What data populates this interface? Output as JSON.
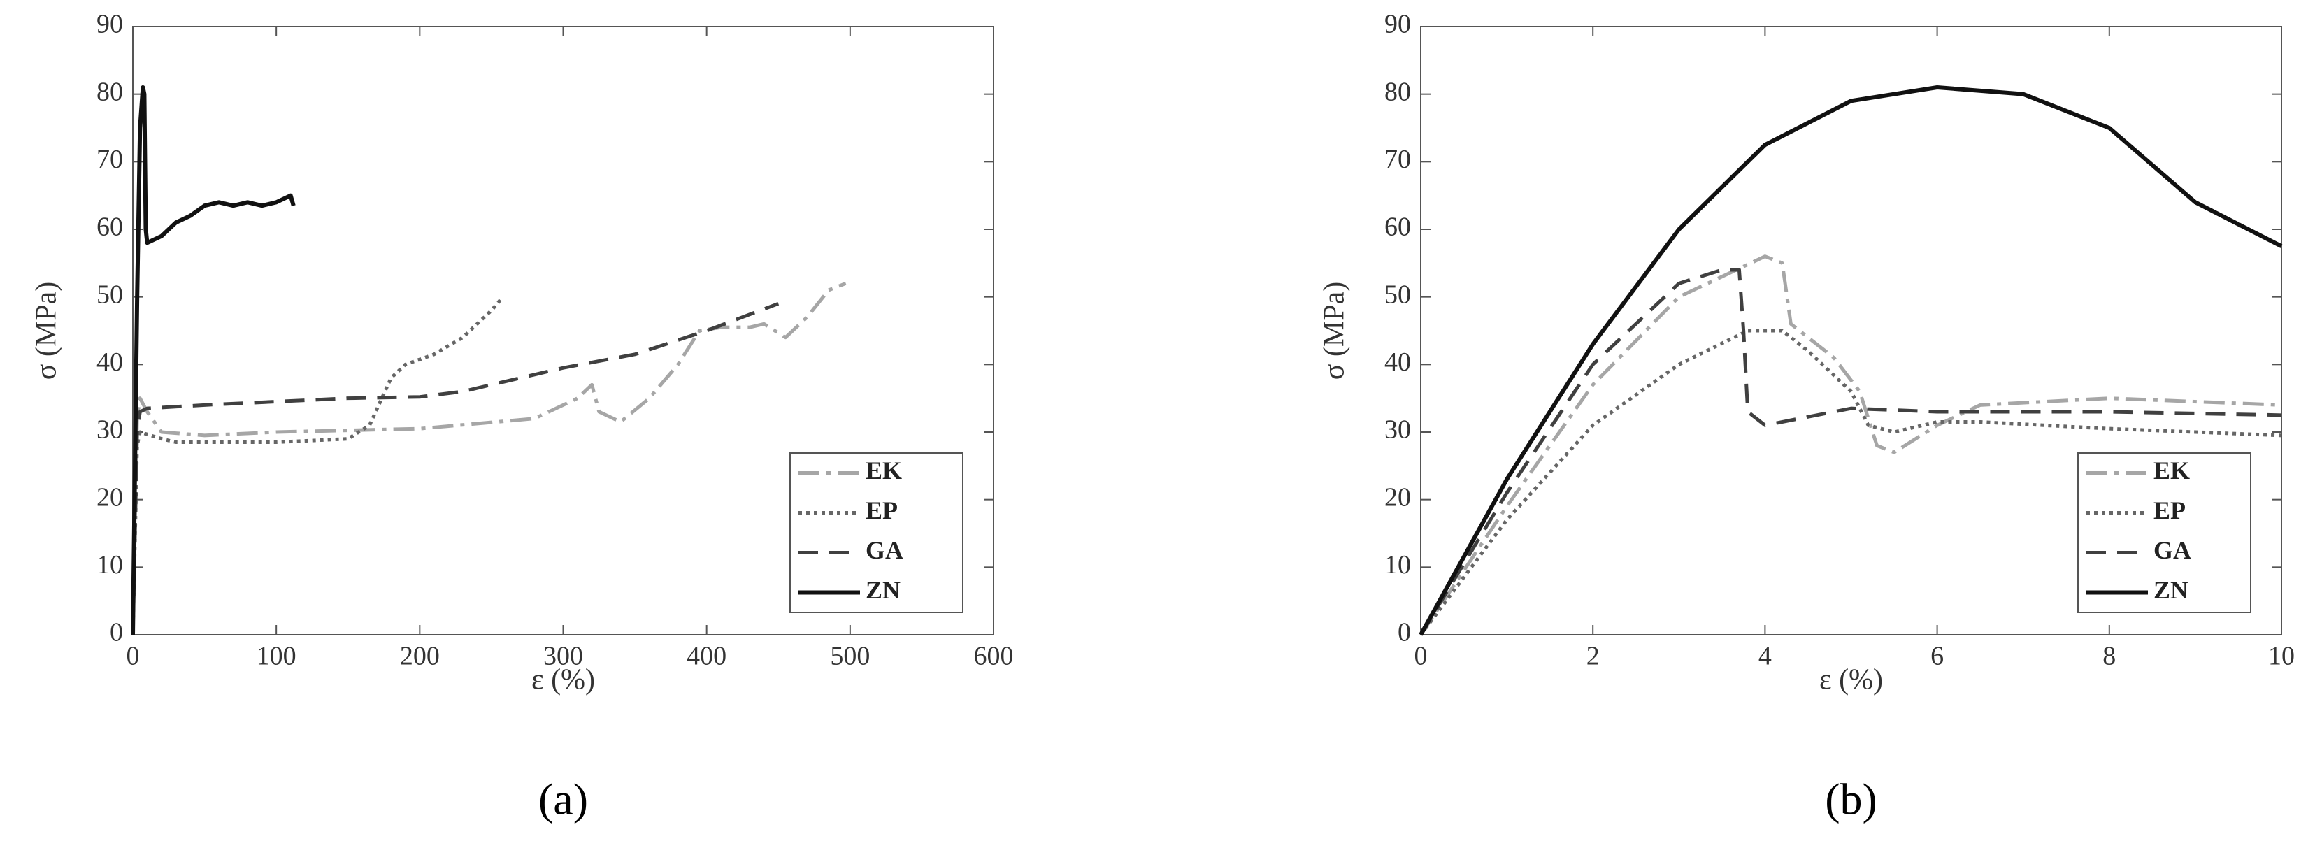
{
  "chart_data": [
    {
      "type": "line",
      "caption": "(a)",
      "xlabel": "ε (%)",
      "ylabel": "σ (MPa)",
      "xlim": [
        0,
        600
      ],
      "xticks": [
        0,
        100,
        200,
        300,
        400,
        500,
        600
      ],
      "ylim": [
        0,
        90
      ],
      "yticks": [
        0,
        10,
        20,
        30,
        40,
        50,
        60,
        70,
        80,
        90
      ],
      "legend": "lower right",
      "series": [
        {
          "name": "EK",
          "color": "#a6a6a6",
          "dash": "dashdot",
          "x": [
            0,
            3,
            5,
            10,
            20,
            50,
            100,
            200,
            280,
            310,
            320,
            325,
            340,
            360,
            380,
            395,
            410,
            430,
            440,
            455,
            470,
            485,
            497
          ],
          "values": [
            0,
            32,
            35,
            33,
            30,
            29.5,
            30,
            30.5,
            32,
            35,
            37,
            33,
            31.5,
            35,
            40,
            45,
            45.5,
            45.5,
            46,
            44,
            47,
            51,
            52
          ]
        },
        {
          "name": "EP",
          "color": "#666666",
          "dash": "dotted",
          "x": [
            0,
            3,
            5,
            20,
            30,
            50,
            100,
            150,
            165,
            180,
            190,
            210,
            230,
            250,
            258
          ],
          "values": [
            0,
            28,
            30,
            29,
            28.5,
            28.5,
            28.5,
            29,
            31,
            38,
            40,
            41.5,
            44,
            48,
            50
          ]
        },
        {
          "name": "GA",
          "color": "#404040",
          "dash": "dashed",
          "x": [
            0,
            3,
            5,
            10,
            50,
            100,
            150,
            200,
            230,
            270,
            300,
            350,
            400,
            450
          ],
          "values": [
            0,
            30,
            33,
            33.5,
            34,
            34.5,
            35,
            35.2,
            36,
            38,
            39.5,
            41.5,
            45,
            49
          ]
        },
        {
          "name": "ZN",
          "color": "#111111",
          "dash": "solid",
          "x": [
            0,
            3,
            5,
            7,
            8,
            9,
            10,
            20,
            30,
            40,
            50,
            60,
            70,
            80,
            90,
            100,
            110,
            112
          ],
          "values": [
            0,
            50,
            75,
            81,
            80,
            60,
            58,
            59,
            61,
            62,
            63.5,
            64,
            63.5,
            64,
            63.5,
            64,
            65,
            63.5
          ]
        }
      ]
    },
    {
      "type": "line",
      "caption": "(b)",
      "xlabel": "ε (%)",
      "ylabel": "σ (MPa)",
      "xlim": [
        0,
        10
      ],
      "xticks": [
        0,
        2,
        4,
        6,
        8,
        10
      ],
      "ylim": [
        0,
        90
      ],
      "yticks": [
        0,
        10,
        20,
        30,
        40,
        50,
        60,
        70,
        80,
        90
      ],
      "legend": "lower right",
      "series": [
        {
          "name": "EK",
          "color": "#a6a6a6",
          "dash": "dashdot",
          "x": [
            0,
            1,
            2,
            3,
            4,
            4.2,
            4.3,
            4.8,
            5.1,
            5.3,
            5.5,
            6,
            6.5,
            8,
            10
          ],
          "values": [
            0,
            19,
            37,
            50,
            56,
            55,
            46,
            41,
            36,
            28,
            27,
            31,
            34,
            35,
            34
          ]
        },
        {
          "name": "EP",
          "color": "#666666",
          "dash": "dotted",
          "x": [
            0,
            1,
            2,
            3,
            3.8,
            4.2,
            4.5,
            5,
            5.2,
            5.5,
            6,
            6.5,
            8,
            10
          ],
          "values": [
            0,
            17,
            31,
            40,
            45,
            45,
            42,
            36,
            31,
            30,
            31.5,
            31.5,
            30.5,
            29.5
          ]
        },
        {
          "name": "GA",
          "color": "#404040",
          "dash": "dashed",
          "x": [
            0,
            1,
            2,
            3,
            3.5,
            3.7,
            3.75,
            3.8,
            4,
            5,
            6,
            8,
            10
          ],
          "values": [
            0,
            21,
            40,
            52,
            54,
            54,
            45,
            33,
            31,
            33.5,
            33,
            33,
            32.5
          ]
        },
        {
          "name": "ZN",
          "color": "#111111",
          "dash": "solid",
          "x": [
            0,
            1,
            2,
            3,
            4,
            5,
            6,
            7,
            8,
            9,
            10
          ],
          "values": [
            0,
            23,
            43,
            60,
            72.5,
            79,
            81,
            80,
            75,
            64,
            57.5
          ]
        }
      ]
    }
  ]
}
